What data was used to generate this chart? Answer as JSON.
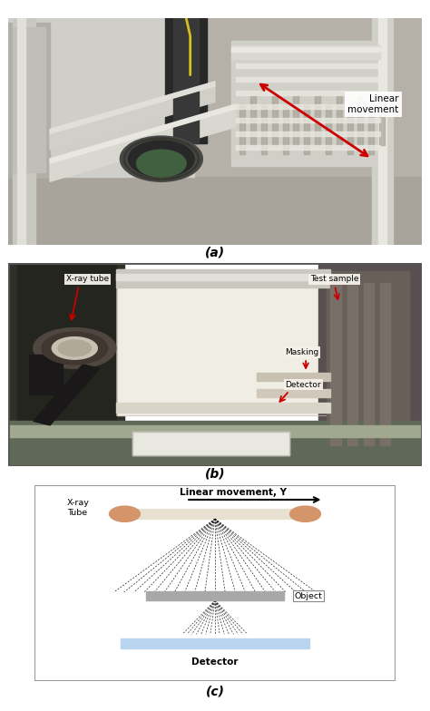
{
  "fig_width": 4.74,
  "fig_height": 7.84,
  "dpi": 100,
  "bg_color": "#ffffff",
  "panel_a": {
    "label": "(a)",
    "annotation": "Linear\nmovement",
    "arrow_color": "#cc0000"
  },
  "panel_b": {
    "label": "(b)",
    "labels": [
      "X-ray tube",
      "Test sample",
      "Masking",
      "Detector"
    ],
    "arrow_color": "#cc0000"
  },
  "panel_c": {
    "label": "(c)",
    "title": "Linear movement, Y",
    "xray_label": "X-ray\nTube",
    "object_label": "Object",
    "detector_label": "Detector",
    "tube_color": "#d4956a",
    "detector_color": "#b8d4ee",
    "object_color": "#a8a8a8",
    "border_color": "#999999"
  }
}
